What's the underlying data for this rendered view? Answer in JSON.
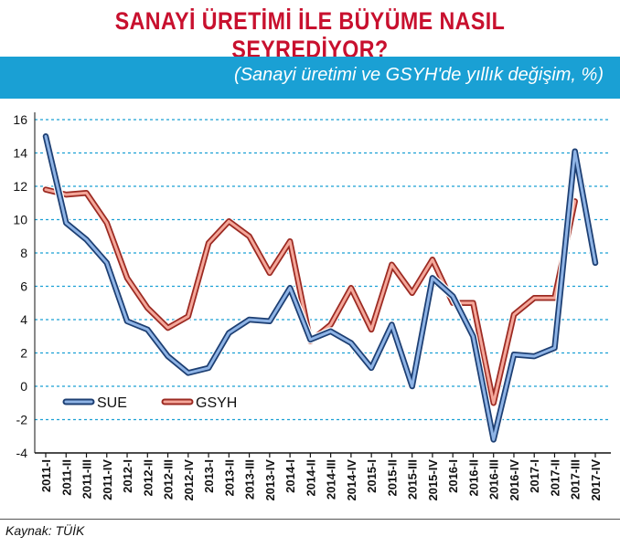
{
  "header": {
    "title": "SANAYİ ÜRETİMİ İLE BÜYÜME NASIL SEYREDİYOR?",
    "subtitle": "(Sanayi üretimi ve GSYH'de yıllık değişim, %)"
  },
  "footer": {
    "source": "Kaynak: TÜİK"
  },
  "colors": {
    "title": "#c8102e",
    "band": "#1aa0d4",
    "sue": "#2a5fa5",
    "gsyh": "#e0453a",
    "grid": "#1aa0d4"
  },
  "chart_data": {
    "type": "line",
    "title": "SANAYİ ÜRETİMİ İLE BÜYÜME NASIL SEYREDİYOR?",
    "subtitle": "(Sanayi üretimi ve GSYH'de yıllık değişim, %)",
    "xlabel": "",
    "ylabel": "",
    "ylim": [
      -4,
      16
    ],
    "yticks": [
      -4,
      -2,
      0,
      2,
      4,
      6,
      8,
      10,
      12,
      14,
      16
    ],
    "grid": true,
    "legend_position": "lower-left",
    "categories": [
      "2011-I",
      "2011-II",
      "2011-III",
      "2011-IV",
      "2012-I",
      "2012-II",
      "2012-III",
      "2012-IV",
      "2013-I",
      "2013-II",
      "2013-III",
      "2013-IV",
      "2014-I",
      "2014-II",
      "2014-III",
      "2014-IV",
      "2015-I",
      "2015-II",
      "2015-III",
      "2015-IV",
      "2016-I",
      "2016-II",
      "2016-III",
      "2016-IV",
      "2017-I",
      "2017-II",
      "2017-III",
      "2017-IV"
    ],
    "series": [
      {
        "name": "SUE",
        "values": [
          15.0,
          9.8,
          8.8,
          7.4,
          3.9,
          3.4,
          1.8,
          0.8,
          1.1,
          3.2,
          4.0,
          3.9,
          5.9,
          2.8,
          3.3,
          2.6,
          1.1,
          3.7,
          0.0,
          6.5,
          5.4,
          3.0,
          -3.2,
          1.9,
          1.8,
          2.3,
          14.1,
          7.4
        ]
      },
      {
        "name": "GSYH",
        "values": [
          11.8,
          11.5,
          11.6,
          9.8,
          6.5,
          4.7,
          3.5,
          4.2,
          8.6,
          9.9,
          9.0,
          6.8,
          8.7,
          2.7,
          3.7,
          5.9,
          3.4,
          7.3,
          5.6,
          7.6,
          5.0,
          5.0,
          -1.0,
          4.3,
          5.3,
          5.3,
          11.1,
          null
        ]
      }
    ]
  }
}
